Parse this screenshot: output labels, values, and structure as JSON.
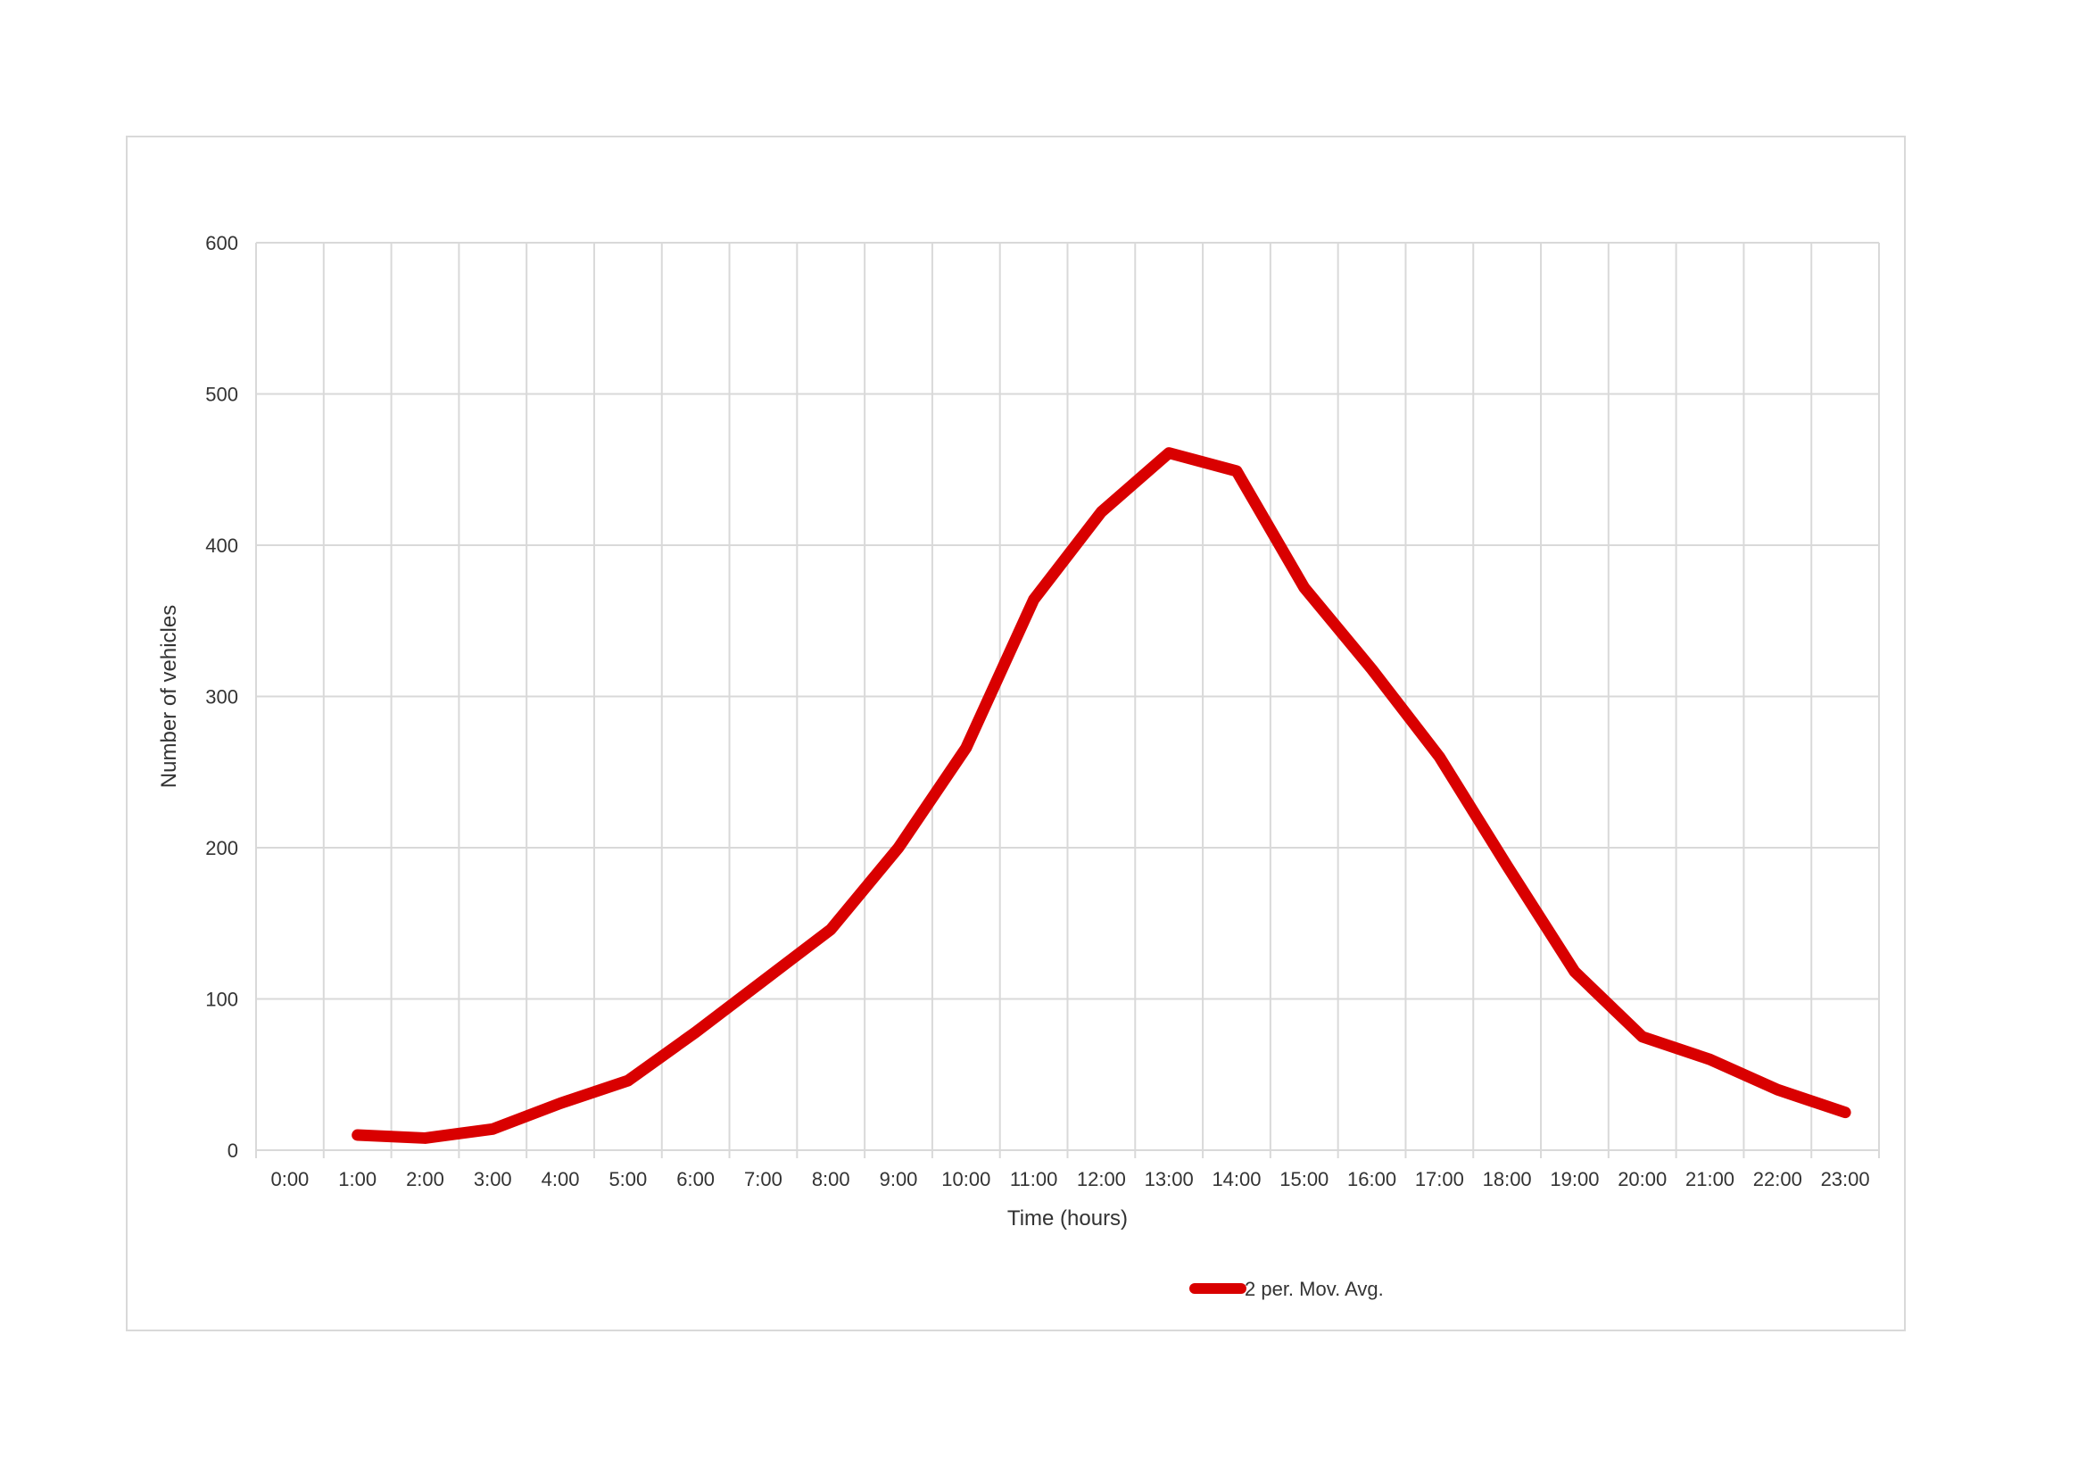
{
  "chart_data": {
    "type": "line",
    "xlabel": "Time (hours)",
    "ylabel": "Number of vehicles",
    "ylim": [
      0,
      600
    ],
    "yticks": [
      0,
      100,
      200,
      300,
      400,
      500,
      600
    ],
    "categories": [
      "0:00",
      "1:00",
      "2:00",
      "3:00",
      "4:00",
      "5:00",
      "6:00",
      "7:00",
      "8:00",
      "9:00",
      "10:00",
      "11:00",
      "12:00",
      "13:00",
      "14:00",
      "15:00",
      "16:00",
      "17:00",
      "18:00",
      "19:00",
      "20:00",
      "21:00",
      "22:00",
      "23:00"
    ],
    "grid": true,
    "legend_position": "bottom",
    "series": [
      {
        "name": "2 per. Mov. Avg.",
        "color": "#d90000",
        "values": [
          null,
          10,
          8,
          14,
          31,
          46,
          78,
          112,
          146,
          200,
          266,
          364,
          422,
          461,
          449,
          372,
          318,
          260,
          188,
          118,
          75,
          60,
          40,
          25
        ]
      }
    ]
  }
}
